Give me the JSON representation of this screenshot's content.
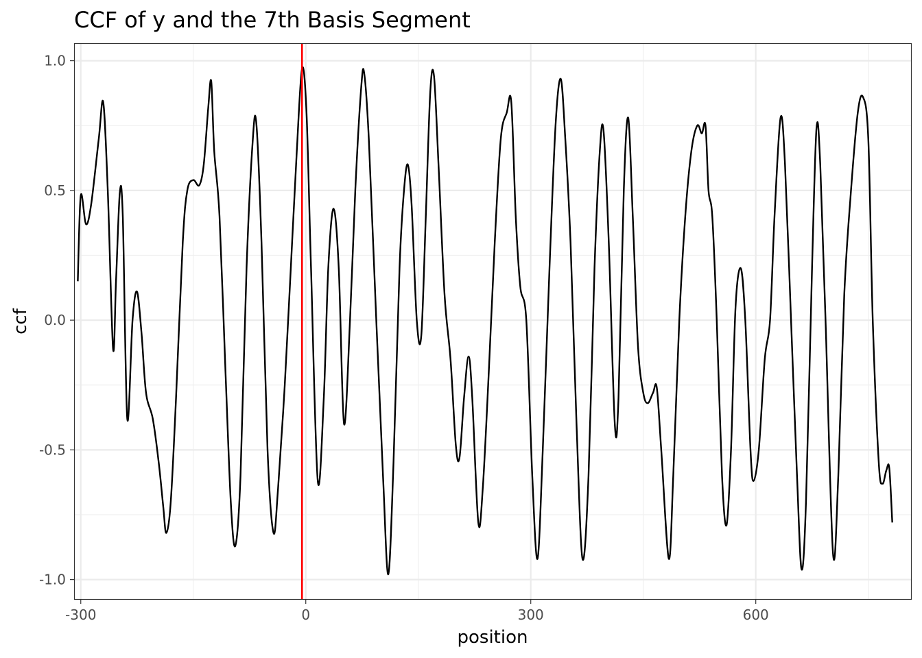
{
  "chart_data": {
    "type": "line",
    "title": "CCF of y and the 7th Basis Segment",
    "xlabel": "position",
    "ylabel": "ccf",
    "xlim": [
      -308,
      807
    ],
    "ylim": [
      -1.075,
      1.065
    ],
    "x_ticks": [
      -300,
      0,
      300,
      600
    ],
    "x_tick_labels": [
      "-300",
      "0",
      "300",
      "600"
    ],
    "x_minor": [
      -150,
      150,
      450,
      750
    ],
    "y_ticks": [
      -1.0,
      -0.5,
      0.0,
      0.5,
      1.0
    ],
    "y_tick_labels": [
      "-1.0",
      "-0.5",
      "0.0",
      "0.5",
      "1.0"
    ],
    "y_minor": [
      -0.75,
      -0.25,
      0.25,
      0.75
    ],
    "grid": true,
    "line_color": "#000000",
    "vline": {
      "x": -5,
      "color": "#ff0000"
    },
    "series": [
      {
        "values": [
          [
            -304,
            0.15
          ],
          [
            -300,
            0.48
          ],
          [
            -293,
            0.37
          ],
          [
            -286,
            0.45
          ],
          [
            -276,
            0.7
          ],
          [
            -270,
            0.84
          ],
          [
            -264,
            0.5
          ],
          [
            -257,
            -0.11
          ],
          [
            -253,
            0.15
          ],
          [
            -248,
            0.49
          ],
          [
            -244,
            0.4
          ],
          [
            -238,
            -0.38
          ],
          [
            -231,
            0.0
          ],
          [
            -225,
            0.11
          ],
          [
            -219,
            -0.05
          ],
          [
            -213,
            -0.28
          ],
          [
            -204,
            -0.38
          ],
          [
            -196,
            -0.55
          ],
          [
            -190,
            -0.72
          ],
          [
            -186,
            -0.82
          ],
          [
            -180,
            -0.7
          ],
          [
            -173,
            -0.3
          ],
          [
            -164,
            0.3
          ],
          [
            -158,
            0.5
          ],
          [
            -150,
            0.54
          ],
          [
            -142,
            0.52
          ],
          [
            -136,
            0.6
          ],
          [
            -130,
            0.82
          ],
          [
            -126,
            0.92
          ],
          [
            -122,
            0.65
          ],
          [
            -115,
            0.4
          ],
          [
            -107,
            -0.2
          ],
          [
            -100,
            -0.7
          ],
          [
            -94,
            -0.87
          ],
          [
            -87,
            -0.6
          ],
          [
            -79,
            0.2
          ],
          [
            -71,
            0.68
          ],
          [
            -66,
            0.76
          ],
          [
            -59,
            0.3
          ],
          [
            -51,
            -0.5
          ],
          [
            -43,
            -0.82
          ],
          [
            -37,
            -0.65
          ],
          [
            -28,
            -0.25
          ],
          [
            -20,
            0.2
          ],
          [
            -12,
            0.65
          ],
          [
            -5,
            0.97
          ],
          [
            1,
            0.8
          ],
          [
            7,
            0.2
          ],
          [
            16,
            -0.62
          ],
          [
            24,
            -0.3
          ],
          [
            30,
            0.2
          ],
          [
            37,
            0.43
          ],
          [
            44,
            0.2
          ],
          [
            51,
            -0.4
          ],
          [
            59,
            0.0
          ],
          [
            66,
            0.5
          ],
          [
            74,
            0.9
          ],
          [
            78,
            0.95
          ],
          [
            84,
            0.7
          ],
          [
            94,
            0.0
          ],
          [
            103,
            -0.6
          ],
          [
            110,
            -0.98
          ],
          [
            117,
            -0.55
          ],
          [
            125,
            0.2
          ],
          [
            131,
            0.5
          ],
          [
            136,
            0.6
          ],
          [
            141,
            0.45
          ],
          [
            148,
            0.0
          ],
          [
            154,
            -0.06
          ],
          [
            160,
            0.4
          ],
          [
            166,
            0.88
          ],
          [
            171,
            0.94
          ],
          [
            177,
            0.6
          ],
          [
            185,
            0.1
          ],
          [
            193,
            -0.15
          ],
          [
            200,
            -0.48
          ],
          [
            205,
            -0.53
          ],
          [
            211,
            -0.3
          ],
          [
            217,
            -0.14
          ],
          [
            222,
            -0.3
          ],
          [
            230,
            -0.78
          ],
          [
            236,
            -0.65
          ],
          [
            244,
            -0.2
          ],
          [
            252,
            0.3
          ],
          [
            260,
            0.7
          ],
          [
            268,
            0.8
          ],
          [
            274,
            0.84
          ],
          [
            280,
            0.4
          ],
          [
            286,
            0.13
          ],
          [
            294,
            0.0
          ],
          [
            302,
            -0.6
          ],
          [
            309,
            -0.92
          ],
          [
            316,
            -0.5
          ],
          [
            325,
            0.2
          ],
          [
            333,
            0.75
          ],
          [
            340,
            0.93
          ],
          [
            346,
            0.7
          ],
          [
            353,
            0.3
          ],
          [
            361,
            -0.4
          ],
          [
            369,
            -0.92
          ],
          [
            377,
            -0.6
          ],
          [
            385,
            0.2
          ],
          [
            392,
            0.65
          ],
          [
            397,
            0.73
          ],
          [
            404,
            0.3
          ],
          [
            412,
            -0.4
          ],
          [
            417,
            -0.3
          ],
          [
            424,
            0.5
          ],
          [
            430,
            0.78
          ],
          [
            436,
            0.4
          ],
          [
            443,
            -0.1
          ],
          [
            450,
            -0.28
          ],
          [
            456,
            -0.32
          ],
          [
            463,
            -0.28
          ],
          [
            468,
            -0.26
          ],
          [
            474,
            -0.5
          ],
          [
            484,
            -0.92
          ],
          [
            490,
            -0.6
          ],
          [
            498,
            0.0
          ],
          [
            506,
            0.4
          ],
          [
            514,
            0.65
          ],
          [
            522,
            0.75
          ],
          [
            528,
            0.72
          ],
          [
            533,
            0.75
          ],
          [
            537,
            0.5
          ],
          [
            542,
            0.4
          ],
          [
            548,
            0.0
          ],
          [
            555,
            -0.6
          ],
          [
            561,
            -0.79
          ],
          [
            567,
            -0.5
          ],
          [
            573,
            0.05
          ],
          [
            580,
            0.2
          ],
          [
            586,
            0.0
          ],
          [
            593,
            -0.5
          ],
          [
            597,
            -0.62
          ],
          [
            604,
            -0.5
          ],
          [
            612,
            -0.15
          ],
          [
            619,
            0.0
          ],
          [
            625,
            0.4
          ],
          [
            633,
            0.78
          ],
          [
            639,
            0.6
          ],
          [
            647,
            0.0
          ],
          [
            655,
            -0.6
          ],
          [
            661,
            -0.96
          ],
          [
            667,
            -0.7
          ],
          [
            675,
            0.2
          ],
          [
            681,
            0.74
          ],
          [
            686,
            0.6
          ],
          [
            693,
            0.0
          ],
          [
            703,
            -0.9
          ],
          [
            710,
            -0.6
          ],
          [
            718,
            0.1
          ],
          [
            727,
            0.5
          ],
          [
            736,
            0.8
          ],
          [
            743,
            0.86
          ],
          [
            750,
            0.7
          ],
          [
            756,
            0.0
          ],
          [
            764,
            -0.55
          ],
          [
            769,
            -0.63
          ],
          [
            774,
            -0.58
          ],
          [
            778,
            -0.57
          ],
          [
            782,
            -0.78
          ]
        ]
      }
    ]
  }
}
